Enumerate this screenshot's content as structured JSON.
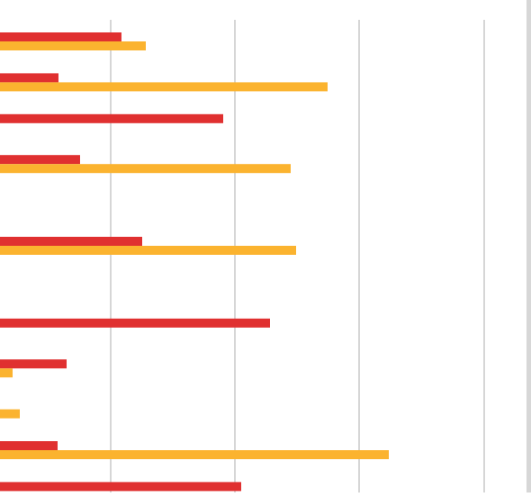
{
  "chart_data": {
    "type": "bar",
    "orientation": "horizontal",
    "title": "",
    "xlabel": "",
    "ylabel": "",
    "grid": true,
    "x_range_visible": [
      0,
      1
    ],
    "categories": [
      "",
      "",
      "",
      "",
      "",
      "",
      "",
      "",
      "",
      "",
      "",
      ""
    ],
    "series": [
      {
        "color": "#e03030",
        "values": [
          0.2436,
          0.1173,
          0.4477,
          0.1606,
          0.0,
          0.2852,
          0.0,
          0.5415,
          0.1336,
          0.0,
          0.1155,
          0.4838
        ]
      },
      {
        "color": "#fbb32f",
        "values": [
          0.2924,
          0.657,
          0.0,
          0.583,
          0.0,
          0.5939,
          0.0,
          0.0,
          0.0253,
          0.0397,
          0.7798,
          0.0
        ]
      }
    ]
  }
}
